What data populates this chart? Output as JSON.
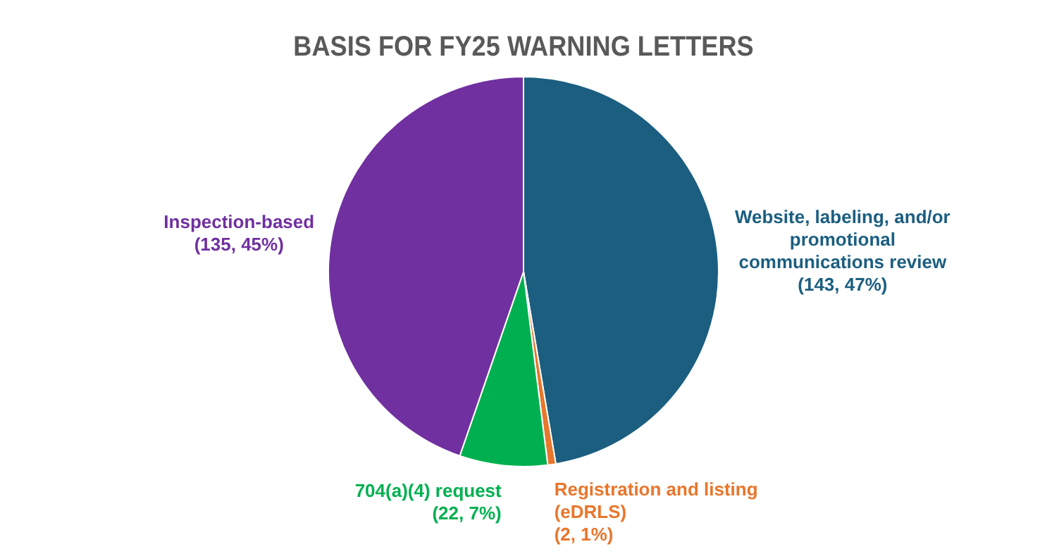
{
  "chart_data": {
    "type": "pie",
    "title": "BASIS FOR FY25 WARNING LETTERS",
    "categories": [
      "Website, labeling, and/or promotional communications review",
      "Registration and listing (eDRLS)",
      "704(a)(4) request",
      "Inspection-based"
    ],
    "values": [
      143,
      2,
      22,
      135
    ],
    "value_labels": [
      "(143, 47%)",
      "(2, 1%)",
      "(22, 7%)",
      "(135, 45%)"
    ],
    "colors": [
      "#1b5e80",
      "#e8762c",
      "#00b050",
      "#7030a0"
    ],
    "legend": false
  }
}
